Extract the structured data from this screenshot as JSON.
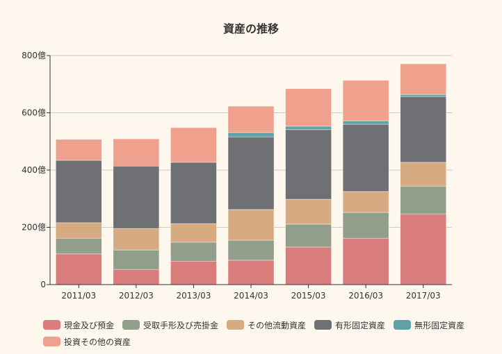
{
  "chart_data": {
    "type": "bar",
    "stacked": true,
    "title": "資産の推移",
    "xlabel": "",
    "ylabel": "",
    "ylim": [
      0,
      800
    ],
    "yticks": [
      0,
      200,
      400,
      600,
      800
    ],
    "ytick_labels": [
      "0",
      "200億",
      "400億",
      "600億",
      "800億"
    ],
    "grid": true,
    "legend_position": "bottom",
    "categories": [
      "2011/03",
      "2012/03",
      "2013/03",
      "2014/03",
      "2015/03",
      "2016/03",
      "2017/03"
    ],
    "series": [
      {
        "name": "現金及び預金",
        "color": "#d87c7c",
        "values": [
          107,
          53,
          82,
          85,
          131,
          162,
          247
        ]
      },
      {
        "name": "受取手形及び売掛金",
        "color": "#919e8b",
        "values": [
          55,
          68,
          66,
          70,
          80,
          90,
          97
        ]
      },
      {
        "name": "その他流動資産",
        "color": "#d7ab82",
        "values": [
          54,
          75,
          65,
          107,
          87,
          73,
          83
        ]
      },
      {
        "name": "有形固定資産",
        "color": "#6e7074",
        "values": [
          218,
          218,
          214,
          254,
          243,
          235,
          230
        ]
      },
      {
        "name": "無形固定資産",
        "color": "#61a0a8",
        "values": [
          0,
          0,
          0,
          15,
          12,
          12,
          7
        ]
      },
      {
        "name": "投資その他の資産",
        "color": "#efa18d",
        "values": [
          73,
          95,
          121,
          92,
          131,
          141,
          107
        ]
      }
    ]
  }
}
